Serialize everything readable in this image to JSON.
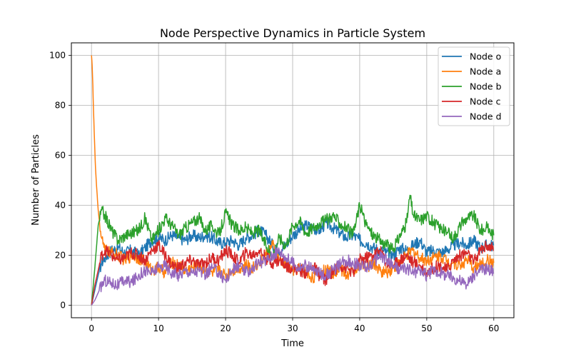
{
  "chart_data": {
    "type": "line",
    "title": "Node Perspective Dynamics in Particle System",
    "xlabel": "Time",
    "ylabel": "Number of Particles",
    "xlim": [
      -3,
      63
    ],
    "ylim": [
      -5,
      105
    ],
    "xticks": [
      0,
      10,
      20,
      30,
      40,
      50,
      60
    ],
    "yticks": [
      0,
      20,
      40,
      60,
      80,
      100
    ],
    "grid": true,
    "legend_position": "top-right",
    "series": [
      {
        "name": "Node o",
        "color": "#1f77b4",
        "x": [
          0,
          0.5,
          1,
          1.5,
          2,
          3,
          4,
          5,
          6,
          7,
          8,
          9,
          10,
          11,
          12,
          13,
          14,
          15,
          16,
          17,
          18,
          19,
          20,
          21,
          22,
          23,
          24,
          25,
          26,
          27,
          28,
          29,
          30,
          31,
          32,
          33,
          34,
          35,
          36,
          37,
          38,
          39,
          40,
          41,
          42,
          43,
          44,
          45,
          46,
          47,
          48,
          49,
          50,
          51,
          52,
          53,
          54,
          55,
          56,
          57,
          58,
          59,
          60
        ],
        "y": [
          0,
          6,
          12,
          17,
          19,
          22,
          23,
          21,
          22,
          20,
          23,
          26,
          27,
          26,
          28,
          27,
          26,
          28,
          27,
          28,
          27,
          25,
          25,
          26,
          24,
          27,
          28,
          30,
          28,
          24,
          22,
          24,
          28,
          30,
          32,
          31,
          30,
          33,
          31,
          29,
          27,
          28,
          26,
          25,
          23,
          22,
          21,
          20,
          23,
          22,
          24,
          26,
          21,
          22,
          21,
          22,
          24,
          25,
          24,
          26,
          23,
          24,
          24
        ]
      },
      {
        "name": "Node a",
        "color": "#ff7f0e",
        "x": [
          0,
          0.1,
          0.2,
          0.3,
          0.4,
          0.5,
          0.6,
          0.7,
          0.8,
          0.9,
          1,
          1.2,
          1.5,
          2,
          3,
          4,
          5,
          6,
          7,
          8,
          9,
          10,
          11,
          12,
          13,
          14,
          15,
          16,
          17,
          18,
          19,
          20,
          21,
          22,
          23,
          24,
          25,
          26,
          27,
          28,
          29,
          30,
          31,
          32,
          33,
          34,
          35,
          36,
          37,
          38,
          39,
          40,
          41,
          42,
          43,
          44,
          45,
          46,
          47,
          48,
          49,
          50,
          51,
          52,
          53,
          54,
          55,
          56,
          57,
          58,
          59,
          60
        ],
        "y": [
          100,
          96,
          88,
          78,
          70,
          62,
          55,
          50,
          46,
          42,
          38,
          33,
          27,
          22,
          21,
          20,
          18,
          20,
          19,
          17,
          14,
          15,
          13,
          17,
          16,
          14,
          15,
          16,
          14,
          13,
          14,
          12,
          14,
          15,
          16,
          15,
          17,
          20,
          24,
          18,
          16,
          14,
          15,
          13,
          11,
          13,
          14,
          13,
          15,
          12,
          14,
          16,
          15,
          17,
          14,
          13,
          15,
          17,
          20,
          22,
          19,
          18,
          19,
          20,
          18,
          17,
          16,
          18,
          15,
          16,
          18,
          17
        ]
      },
      {
        "name": "Node b",
        "color": "#2ca02c",
        "x": [
          0,
          0.5,
          1,
          1.5,
          2,
          3,
          4,
          5,
          6,
          7,
          8,
          9,
          10,
          11,
          12,
          13,
          14,
          15,
          16,
          17,
          18,
          19,
          20,
          21,
          22,
          23,
          24,
          25,
          26,
          27,
          28,
          29,
          30,
          31,
          32,
          33,
          34,
          35,
          36,
          37,
          38,
          39,
          40,
          41,
          42,
          43,
          44,
          45,
          46,
          47,
          47.5,
          48,
          49,
          50,
          51,
          52,
          53,
          54,
          55,
          56,
          57,
          58,
          59,
          60
        ],
        "y": [
          0,
          15,
          32,
          38,
          36,
          30,
          26,
          28,
          29,
          30,
          35,
          26,
          30,
          35,
          32,
          28,
          31,
          33,
          35,
          30,
          32,
          28,
          37,
          32,
          30,
          31,
          29,
          30,
          24,
          20,
          27,
          24,
          32,
          34,
          29,
          31,
          33,
          34,
          36,
          33,
          31,
          28,
          40,
          32,
          28,
          26,
          24,
          22,
          28,
          33,
          44,
          36,
          34,
          36,
          33,
          31,
          29,
          27,
          32,
          35,
          36,
          30,
          31,
          28
        ]
      },
      {
        "name": "Node c",
        "color": "#d62728",
        "x": [
          0,
          0.5,
          1,
          1.5,
          2,
          3,
          4,
          5,
          6,
          7,
          8,
          9,
          10,
          11,
          12,
          13,
          14,
          15,
          16,
          17,
          18,
          19,
          20,
          21,
          22,
          23,
          24,
          25,
          26,
          27,
          28,
          29,
          30,
          31,
          32,
          33,
          34,
          35,
          36,
          37,
          38,
          39,
          40,
          41,
          42,
          43,
          44,
          45,
          46,
          47,
          48,
          49,
          50,
          51,
          52,
          53,
          54,
          55,
          56,
          57,
          58,
          59,
          60
        ],
        "y": [
          0,
          8,
          14,
          20,
          22,
          20,
          18,
          19,
          21,
          20,
          18,
          22,
          24,
          20,
          16,
          15,
          17,
          18,
          16,
          17,
          19,
          18,
          22,
          20,
          17,
          21,
          20,
          22,
          19,
          17,
          18,
          16,
          15,
          14,
          13,
          16,
          12,
          10,
          14,
          16,
          15,
          13,
          18,
          19,
          20,
          22,
          17,
          16,
          18,
          20,
          17,
          16,
          13,
          15,
          16,
          14,
          18,
          20,
          21,
          17,
          22,
          24,
          22
        ]
      },
      {
        "name": "Node d",
        "color": "#9467bd",
        "x": [
          0,
          0.5,
          1,
          1.5,
          2,
          3,
          4,
          5,
          6,
          7,
          8,
          9,
          10,
          11,
          12,
          13,
          14,
          15,
          16,
          17,
          18,
          19,
          20,
          21,
          22,
          23,
          24,
          25,
          26,
          27,
          28,
          29,
          30,
          31,
          32,
          33,
          34,
          35,
          36,
          37,
          38,
          39,
          40,
          41,
          42,
          43,
          44,
          45,
          46,
          47,
          48,
          49,
          50,
          51,
          52,
          53,
          54,
          55,
          56,
          57,
          58,
          59,
          60
        ],
        "y": [
          0,
          2,
          5,
          8,
          10,
          9,
          8,
          10,
          9,
          12,
          14,
          13,
          15,
          16,
          13,
          12,
          14,
          13,
          14,
          12,
          15,
          13,
          10,
          14,
          16,
          13,
          15,
          17,
          18,
          20,
          22,
          19,
          17,
          15,
          16,
          14,
          13,
          12,
          14,
          16,
          18,
          17,
          16,
          15,
          17,
          20,
          18,
          16,
          14,
          15,
          13,
          14,
          12,
          14,
          13,
          12,
          11,
          10,
          8,
          12,
          14,
          15,
          13
        ]
      }
    ]
  }
}
